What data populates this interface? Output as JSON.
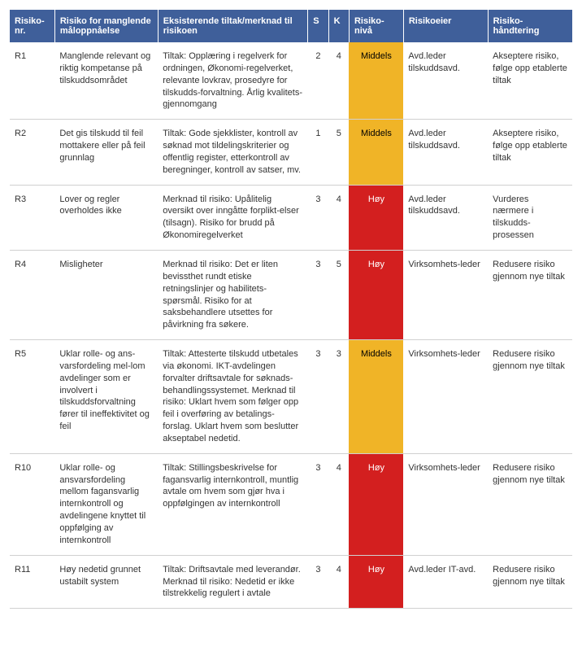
{
  "colors": {
    "header_bg": "#3f5f9a",
    "header_fg": "#ffffff",
    "row_border": "#d0d0d0",
    "level_middels_bg": "#f0b427",
    "level_middels_fg": "#000000",
    "level_hoy_bg": "#d31f1f",
    "level_hoy_fg": "#ffffff"
  },
  "headers": {
    "nr": "Risiko-\nnr.",
    "risk": "Risiko for manglende måloppnåelse",
    "tiltak": "Eksisterende tiltak/merknad til risikoen",
    "s": "S",
    "k": "K",
    "niva": "Risiko-\nnivå",
    "eier": "Risikoeier",
    "hand": "Risiko-\nhåndtering"
  },
  "rows": [
    {
      "nr": "R1",
      "risk": "Manglende relevant og riktig kompetanse på tilskuddsområdet",
      "tiltak": "Tiltak: Opplæring i regelverk for ordningen, Økonomi-regelverket, relevante lovkrav, prosedyre for tilskudds-forvaltning. Årlig kvalitets-gjennomgang",
      "s": "2",
      "k": "4",
      "niva": "Middels",
      "niva_level": "middels",
      "eier": "Avd.leder tilskuddsavd.",
      "hand": "Akseptere risiko, følge opp etablerte tiltak"
    },
    {
      "nr": "R2",
      "risk": "Det gis tilskudd til feil mottakere eller på feil grunnlag",
      "tiltak": "Tiltak: Gode sjekklister, kontroll av søknad mot tildelingskriterier og offentlig register, etterkontroll av beregninger, kontroll av satser, mv.",
      "s": "1",
      "k": "5",
      "niva": "Middels",
      "niva_level": "middels",
      "eier": "Avd.leder tilskuddsavd.",
      "hand": "Akseptere risiko, følge opp etablerte tiltak"
    },
    {
      "nr": "R3",
      "risk": "Lover og regler overholdes ikke",
      "tiltak": "Merknad til risiko: Upålitelig oversikt over inngåtte forplikt-elser (tilsagn). Risiko for brudd på Økonomiregelverket",
      "s": "3",
      "k": "4",
      "niva": "Høy",
      "niva_level": "hoy",
      "eier": "Avd.leder tilskuddsavd.",
      "hand": "Vurderes nærmere i tilskudds-prosessen"
    },
    {
      "nr": "R4",
      "risk": "Misligheter",
      "tiltak": "Merknad til risiko: Det er liten bevissthet rundt etiske retningslinjer og habilitets-spørsmål. Risiko for at saksbehandlere utsettes for påvirkning fra søkere.",
      "s": "3",
      "k": "5",
      "niva": "Høy",
      "niva_level": "hoy",
      "eier": "Virksomhets-leder",
      "hand": "Redusere risiko gjennom nye tiltak"
    },
    {
      "nr": "R5",
      "risk": "Uklar rolle- og ans-varsfordeling mel-lom avdelinger som er involvert i tilskuddsforvaltning fører til ineffektivitet og feil",
      "tiltak": "Tiltak: Attesterte tilskudd utbetales via økonomi. IKT-avdelingen forvalter driftsavtale for søknads-behandlingssystemet. Merknad til risiko: Uklart hvem som følger opp feil i overføring av betalings-forslag. Uklart hvem som beslutter akseptabel nedetid.",
      "s": "3",
      "k": "3",
      "niva": "Middels",
      "niva_level": "middels",
      "eier": "Virksomhets-leder",
      "hand": "Redusere risiko gjennom nye tiltak"
    },
    {
      "nr": "R10",
      "risk": "Uklar rolle- og ansvarsfordeling mellom fagansvarlig internkontroll og avdelingene knyttet til oppfølging av internkontroll",
      "tiltak": "Tiltak: Stillingsbeskrivelse for fagansvarlig internkontroll, muntlig avtale om hvem som gjør hva i oppfølgingen av internkontroll",
      "s": "3",
      "k": "4",
      "niva": "Høy",
      "niva_level": "hoy",
      "eier": "Virksomhets-leder",
      "hand": "Redusere risiko gjennom nye tiltak"
    },
    {
      "nr": "R11",
      "risk": "Høy nedetid grunnet ustabilt system",
      "tiltak": "Tiltak: Driftsavtale med leverandør.\nMerknad til risiko: Nedetid er ikke tilstrekkelig regulert i avtale",
      "s": "3",
      "k": "4",
      "niva": "Høy",
      "niva_level": "hoy",
      "eier": "Avd.leder IT-avd.",
      "hand": "Redusere risiko gjennom nye tiltak"
    }
  ]
}
